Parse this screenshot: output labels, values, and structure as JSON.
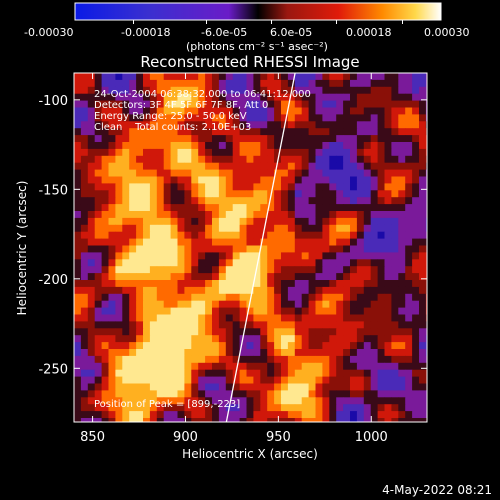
{
  "chart_data": {
    "type": "heatmap",
    "title": "Reconstructed RHESSI Image",
    "xlabel": "Heliocentric X (arcsec)",
    "ylabel": "Heliocentric Y (arcsec)",
    "xlim": [
      840,
      1030
    ],
    "ylim": [
      -280,
      -85
    ],
    "x_ticks": [
      850,
      900,
      950,
      1000
    ],
    "y_ticks": [
      -100,
      -150,
      -200,
      -250
    ],
    "colorbar": {
      "ticks": [
        "-0.00030",
        "-0.00018",
        "-6.0e-05",
        "6.0e-05",
        "0.00018",
        "0.00030"
      ],
      "range": [
        -0.0003,
        0.0003
      ],
      "units_label": "(photons cm⁻² s⁻¹ asec⁻²)"
    },
    "annotations": [
      "24-Oct-2004 06:38:32.000 to 06:41:12.000",
      "Detectors: 3F 4F 5F 6F 7F 8F, Att 0",
      "Energy Range: 25.0 - 50.0 keV",
      "Clean    Total counts: 2.10E+03"
    ],
    "peak_label": "Position of Peak = [899,-223]",
    "limb_line": [
      [
        922,
        -280
      ],
      [
        959,
        -85
      ]
    ],
    "grid": false
  },
  "footer": {
    "date": "4-May-2022 08:21"
  }
}
